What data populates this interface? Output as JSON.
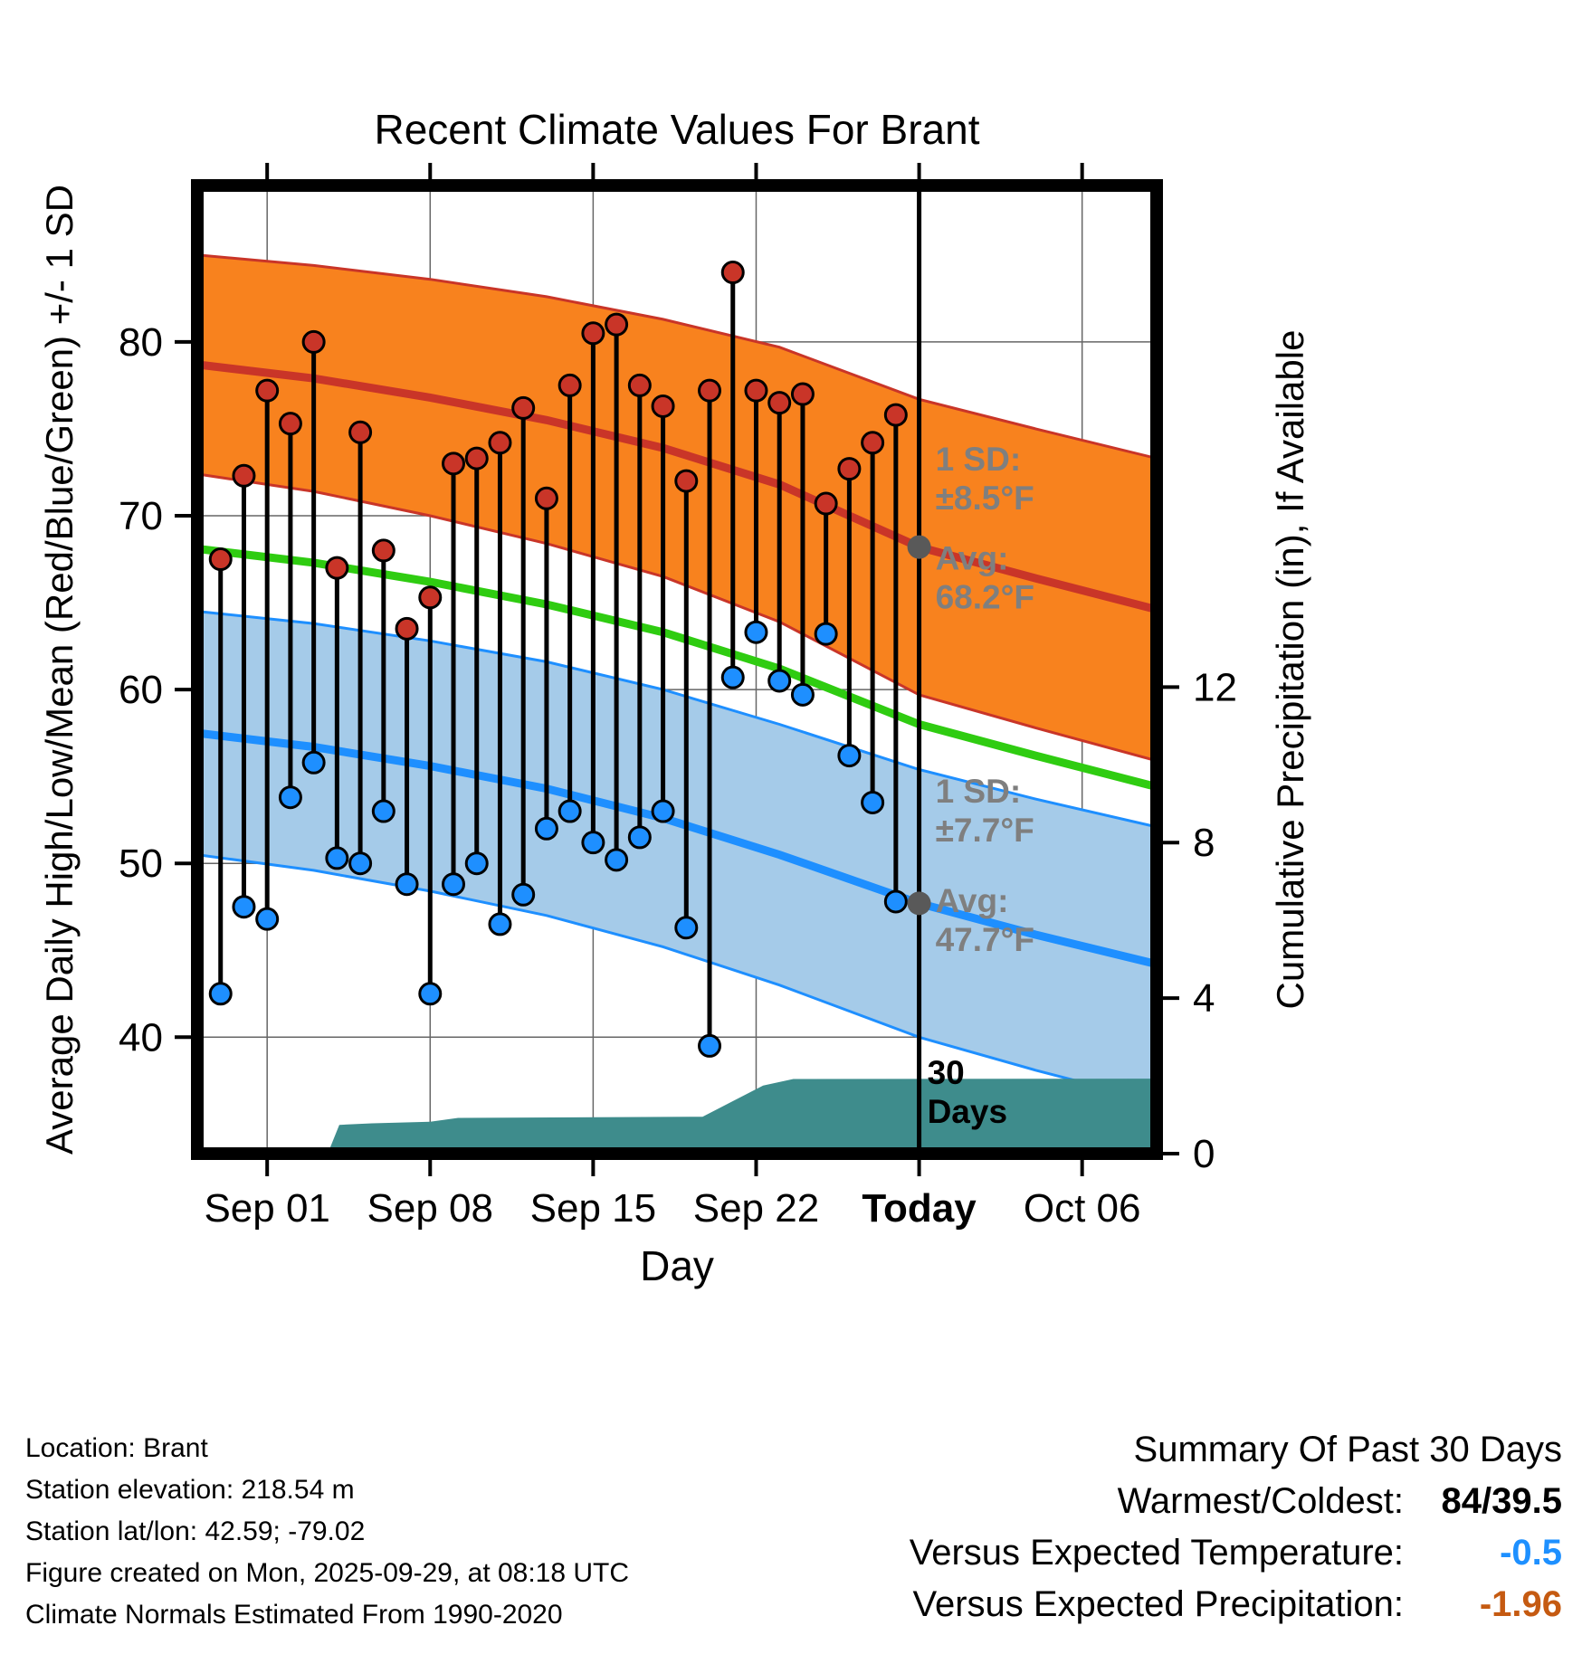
{
  "title": "Recent Climate Values For Brant",
  "chart_data": {
    "type": "line",
    "title": "Recent Climate Values For Brant",
    "x_axis": {
      "label": "Day",
      "domain": [
        0,
        41.2
      ],
      "ticks": [
        {
          "day": 3,
          "label": "Sep 01",
          "bold": false
        },
        {
          "day": 10,
          "label": "Sep 08",
          "bold": false
        },
        {
          "day": 17,
          "label": "Sep 15",
          "bold": false
        },
        {
          "day": 24,
          "label": "Sep 22",
          "bold": false
        },
        {
          "day": 31,
          "label": "Today",
          "bold": true
        },
        {
          "day": 38,
          "label": "Oct 06",
          "bold": false
        }
      ]
    },
    "temp_axis": {
      "label": "Average Daily High/Low/Mean (Red/Blue/Green) +/- 1 SD",
      "domain": [
        33.3,
        89.0
      ],
      "ticks": [
        40,
        50,
        60,
        70,
        80
      ]
    },
    "precip_axis": {
      "label": "Cumulative Precipitation (in), If Available",
      "domain": [
        0,
        24.9
      ],
      "ticks": [
        0,
        4,
        8,
        12
      ]
    },
    "today_day": 31,
    "daily_high_low": {
      "start_day": 1,
      "values": [
        [
          67.5,
          42.5
        ],
        [
          72.3,
          47.5
        ],
        [
          77.2,
          46.8
        ],
        [
          75.3,
          53.8
        ],
        [
          80.0,
          55.8
        ],
        [
          67.0,
          50.3
        ],
        [
          74.8,
          50.0
        ],
        [
          68.0,
          53.0
        ],
        [
          63.5,
          48.8
        ],
        [
          65.3,
          42.5
        ],
        [
          73.0,
          48.8
        ],
        [
          73.3,
          50.0
        ],
        [
          74.2,
          46.5
        ],
        [
          76.2,
          48.2
        ],
        [
          71.0,
          52.0
        ],
        [
          77.5,
          53.0
        ],
        [
          80.5,
          51.2
        ],
        [
          81.0,
          50.2
        ],
        [
          77.5,
          51.5
        ],
        [
          76.3,
          53.0
        ],
        [
          72.0,
          46.3
        ],
        [
          77.2,
          39.5
        ],
        [
          84.0,
          60.7
        ],
        [
          77.2,
          63.3
        ],
        [
          76.5,
          60.5
        ],
        [
          77.0,
          59.7
        ],
        [
          70.7,
          63.2
        ],
        [
          72.7,
          56.2
        ],
        [
          74.2,
          53.5
        ],
        [
          75.8,
          47.8
        ]
      ]
    },
    "normals": {
      "control_days": [
        0,
        5,
        10,
        15,
        20,
        25,
        31,
        36,
        41.2
      ],
      "high_avg": [
        78.7,
        77.9,
        76.8,
        75.5,
        73.9,
        71.8,
        68.2,
        66.4,
        64.6
      ],
      "high_sd": [
        6.3,
        6.5,
        6.8,
        7.1,
        7.4,
        7.9,
        8.5,
        8.6,
        8.7
      ],
      "mean": [
        68.1,
        67.3,
        66.2,
        64.9,
        63.3,
        61.2,
        58.0,
        56.2,
        54.4
      ],
      "low_avg": [
        57.5,
        56.7,
        55.6,
        54.3,
        52.6,
        50.5,
        47.7,
        45.9,
        44.2
      ],
      "low_sd": [
        7.0,
        7.1,
        7.2,
        7.3,
        7.4,
        7.5,
        7.7,
        7.8,
        7.9
      ]
    },
    "precip_cumulative": [
      [
        0,
        0
      ],
      [
        5.6,
        0
      ],
      [
        6.1,
        0.74
      ],
      [
        7.5,
        0.78
      ],
      [
        10,
        0.82
      ],
      [
        11.2,
        0.92
      ],
      [
        21.7,
        0.95
      ],
      [
        23,
        1.35
      ],
      [
        24.3,
        1.75
      ],
      [
        25.6,
        1.92
      ],
      [
        41.2,
        1.93
      ]
    ],
    "avg_markers": [
      {
        "day": 31,
        "temp": 68.2
      },
      {
        "day": 31,
        "temp": 47.7
      }
    ],
    "annotations": [
      {
        "day": 31.7,
        "temp": 72.6,
        "lines": [
          "1 SD:",
          "±8.5°F"
        ],
        "color": "#7F7F7F"
      },
      {
        "day": 31.7,
        "temp": 66.9,
        "lines": [
          "Avg:",
          "68.2°F"
        ],
        "color": "#7F7F7F"
      },
      {
        "day": 31.7,
        "temp": 53.5,
        "lines": [
          "1 SD:",
          "±7.7°F"
        ],
        "color": "#7F7F7F"
      },
      {
        "day": 31.7,
        "temp": 47.2,
        "lines": [
          "Avg:",
          "47.7°F"
        ],
        "color": "#7F7F7F"
      },
      {
        "day": 31.35,
        "temp": 37.3,
        "lines": [
          "30",
          "Days"
        ],
        "color": "#000000"
      }
    ],
    "colors": {
      "high_band_fill": "#F8821E",
      "high_line": "#C93528",
      "low_band_fill": "#A5CBE9",
      "low_line": "#1E8FFF",
      "mean_line": "#2FCC11",
      "precip_fill": "#3E8C8C",
      "stem": "#000000",
      "avg_marker": "#595959",
      "grid": "#666666",
      "frame": "#000000"
    }
  },
  "footer": {
    "lines": [
      "Location: Brant",
      "Station elevation: 218.54 m",
      "Station lat/lon: 42.59; -79.02",
      "Figure created on Mon, 2025-09-29, at 08:18 UTC",
      "Climate Normals Estimated From 1990-2020"
    ]
  },
  "summary": {
    "title": "Summary Of Past 30 Days",
    "rows": [
      {
        "label": "Warmest/Coldest:",
        "value": "84/39.5",
        "value_color": "#000000"
      },
      {
        "label": "Versus Expected Temperature:",
        "value": "-0.5",
        "value_color": "#1E90FF"
      },
      {
        "label": "Versus Expected Precipitation:",
        "value": "-1.96",
        "value_color": "#C55A11"
      }
    ]
  }
}
